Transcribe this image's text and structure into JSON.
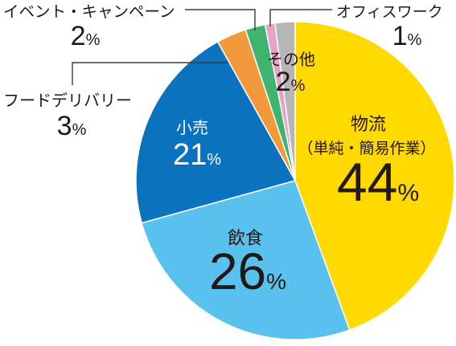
{
  "chart_data": {
    "type": "pie",
    "unit": "%",
    "slices": [
      {
        "label": "物流",
        "sublabel": "（単純・簡易作業）",
        "value": 44,
        "color": "#FFD900"
      },
      {
        "label": "飲食",
        "value": 26,
        "color": "#58C1EE"
      },
      {
        "label": "小売",
        "value": 21,
        "color": "#0B72BF"
      },
      {
        "label": "フードデリバリー",
        "value": 3,
        "color": "#F29A3B"
      },
      {
        "label": "イベント・キャンペーン",
        "value": 2,
        "color": "#3FB370"
      },
      {
        "label": "オフィスワーク",
        "value": 1,
        "color": "#E8A1C9"
      },
      {
        "label": "その他",
        "value": 2,
        "color": "#B6B6B6"
      }
    ]
  }
}
